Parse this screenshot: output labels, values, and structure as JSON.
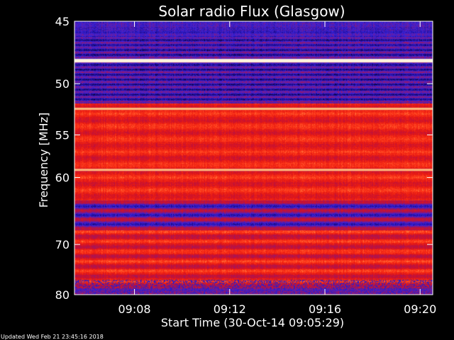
{
  "chart_data": {
    "type": "heatmap",
    "title": "Solar radio Flux (Glasgow)",
    "xlabel": "Start Time (30-Oct-14 09:05:29)",
    "ylabel": "Frequency [MHz]",
    "x_ticks": [
      "09:08",
      "09:12",
      "09:16",
      "09:20"
    ],
    "x_tick_minutes": [
      2.52,
      6.52,
      10.52,
      14.52
    ],
    "x_range_minutes": [
      0,
      15.05
    ],
    "y_ticks": [
      45,
      50,
      55,
      60,
      70,
      80
    ],
    "y_range": [
      45,
      80
    ],
    "y_scale": "reciprocal",
    "grid": false,
    "bright_lines_mhz": [
      48.0,
      52.3,
      59.0
    ],
    "colormap": [
      "#000000",
      "#1a0a8c",
      "#3a22d8",
      "#8a1a7a",
      "#c0103a",
      "#e81a12",
      "#ff3a1a",
      "#ff9a50",
      "#ffe8c0"
    ]
  },
  "footer": {
    "updated": "Updated Wed Feb 21 23:45:16 2018"
  }
}
